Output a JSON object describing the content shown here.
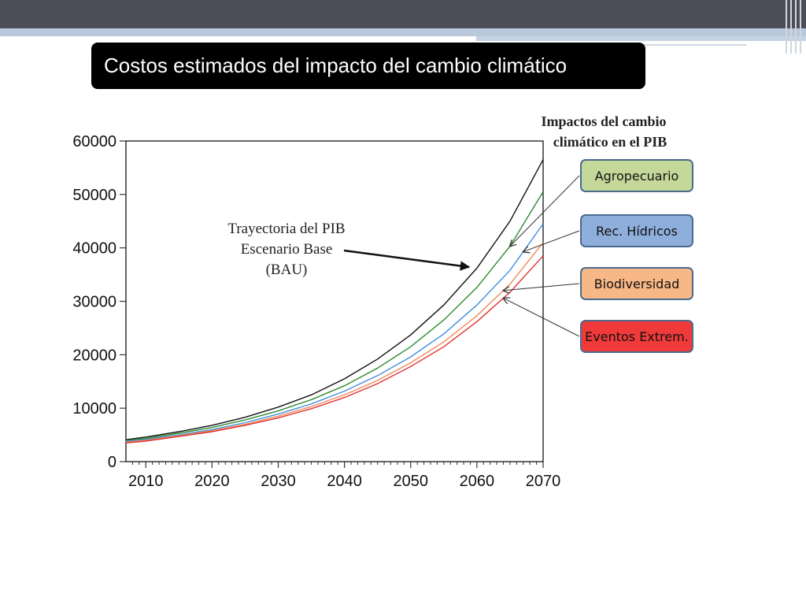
{
  "slide": {
    "title": "Costos estimados del impacto del cambio climático",
    "colors": {
      "topbar": "#4d4d57",
      "stripe": "#b9c8db",
      "title_bg": "#000000",
      "title_fg": "#ffffff"
    }
  },
  "chart_data": {
    "type": "line",
    "title": "",
    "xlabel": "",
    "ylabel": "",
    "xlim": [
      2007,
      2070
    ],
    "ylim": [
      0,
      60000
    ],
    "yticks": [
      "0",
      "10000",
      "20000",
      "30000",
      "40000",
      "50000",
      "60000"
    ],
    "xticks": [
      "2010",
      "2020",
      "2030",
      "2040",
      "2050",
      "2060",
      "2070"
    ],
    "grid": false,
    "annotation": {
      "lines": [
        "Trayectoria del PIB",
        "Escenario Base",
        "(BAU)"
      ],
      "target_series": "BAU"
    },
    "legend_title": [
      "Impactos del cambio",
      "climático en el PIB"
    ],
    "legend_placement": "right",
    "series": [
      {
        "key": "BAU",
        "name": "",
        "color": "#111111",
        "points": [
          [
            2007,
            4100
          ],
          [
            2010,
            4600
          ],
          [
            2015,
            5600
          ],
          [
            2020,
            6800
          ],
          [
            2025,
            8300
          ],
          [
            2030,
            10200
          ],
          [
            2035,
            12500
          ],
          [
            2040,
            15500
          ],
          [
            2045,
            19200
          ],
          [
            2050,
            23700
          ],
          [
            2055,
            29300
          ],
          [
            2060,
            36200
          ],
          [
            2065,
            45000
          ],
          [
            2070,
            56500
          ]
        ]
      },
      {
        "key": "agro",
        "name": "Agropecuario",
        "color": "#2e8b2e",
        "box_color": "#c4d89a",
        "points": [
          [
            2007,
            3950
          ],
          [
            2010,
            4350
          ],
          [
            2015,
            5300
          ],
          [
            2020,
            6400
          ],
          [
            2025,
            7800
          ],
          [
            2030,
            9500
          ],
          [
            2035,
            11600
          ],
          [
            2040,
            14200
          ],
          [
            2045,
            17500
          ],
          [
            2050,
            21500
          ],
          [
            2055,
            26500
          ],
          [
            2060,
            32600
          ],
          [
            2065,
            40300
          ],
          [
            2070,
            50500
          ]
        ]
      },
      {
        "key": "hidro",
        "name": "Rec. Hídricos",
        "color": "#3f8fe0",
        "box_color": "#8eaedb",
        "points": [
          [
            2007,
            3800
          ],
          [
            2010,
            4150
          ],
          [
            2015,
            5000
          ],
          [
            2020,
            6000
          ],
          [
            2025,
            7300
          ],
          [
            2030,
            8900
          ],
          [
            2035,
            10800
          ],
          [
            2040,
            13200
          ],
          [
            2045,
            16100
          ],
          [
            2050,
            19600
          ],
          [
            2055,
            23900
          ],
          [
            2060,
            29300
          ],
          [
            2065,
            35800
          ],
          [
            2070,
            44500
          ]
        ]
      },
      {
        "key": "bio",
        "name": "Biodiversidad",
        "color": "#f08a5a",
        "box_color": "#f8b787",
        "points": [
          [
            2007,
            3650
          ],
          [
            2010,
            4000
          ],
          [
            2015,
            4850
          ],
          [
            2020,
            5800
          ],
          [
            2025,
            7000
          ],
          [
            2030,
            8500
          ],
          [
            2035,
            10300
          ],
          [
            2040,
            12500
          ],
          [
            2045,
            15200
          ],
          [
            2050,
            18500
          ],
          [
            2055,
            22400
          ],
          [
            2060,
            27300
          ],
          [
            2065,
            33200
          ],
          [
            2070,
            41000
          ]
        ]
      },
      {
        "key": "ext",
        "name": "Eventos Extrem.",
        "color": "#e03030",
        "box_color": "#f03a3a",
        "points": [
          [
            2007,
            3500
          ],
          [
            2010,
            3850
          ],
          [
            2015,
            4700
          ],
          [
            2020,
            5600
          ],
          [
            2025,
            6800
          ],
          [
            2030,
            8200
          ],
          [
            2035,
            9900
          ],
          [
            2040,
            12000
          ],
          [
            2045,
            14600
          ],
          [
            2050,
            17800
          ],
          [
            2055,
            21500
          ],
          [
            2060,
            26200
          ],
          [
            2065,
            31700
          ],
          [
            2070,
            38500
          ]
        ]
      }
    ]
  }
}
